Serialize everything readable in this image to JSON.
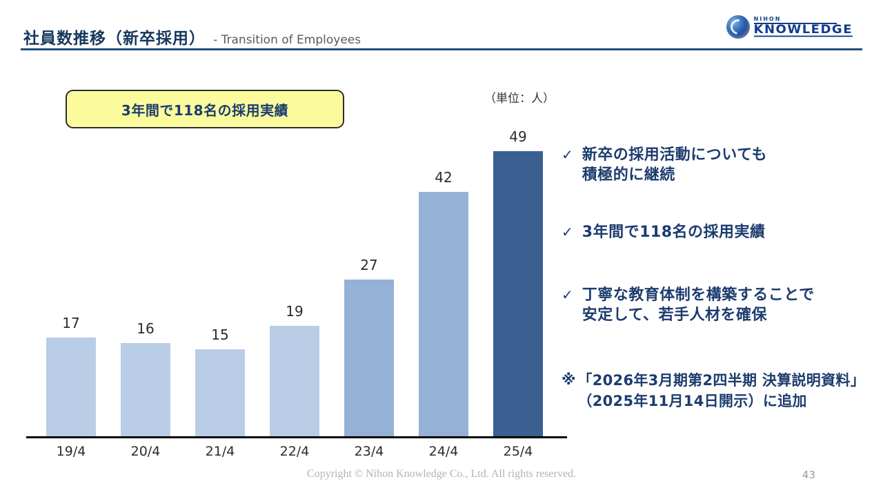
{
  "header": {
    "title_jp": "社員数推移（新卒採用）",
    "title_en": "- Transition of Employees",
    "accent_color": "#1f4e79"
  },
  "logo": {
    "top_text": "NIHON",
    "bottom_text": "KNOWLEDGE",
    "brand_color": "#123a8c"
  },
  "callout": {
    "text": "3年間で118名の採用実績",
    "background_color": "#fbfb9d",
    "text_color": "#1c3c6e"
  },
  "chart_data": {
    "type": "bar",
    "title": "",
    "unit_label": "（単位：人）",
    "categories": [
      "19/4",
      "20/4",
      "21/4",
      "22/4",
      "23/4",
      "24/4",
      "25/4"
    ],
    "values": [
      17,
      16,
      15,
      19,
      27,
      42,
      49
    ],
    "bar_colors": [
      "#b9cde6",
      "#b9cde6",
      "#b9cde6",
      "#b9cde6",
      "#95b1d6",
      "#95b1d6",
      "#3a6091"
    ],
    "xlabel": "",
    "ylabel": "",
    "ylim": [
      0,
      52
    ],
    "grid": false,
    "data_labels": true,
    "legend": false
  },
  "bullets": [
    {
      "check": "✓",
      "line1": "新卒の採用活動についても",
      "line2": "積極的に継続"
    },
    {
      "check": "✓",
      "line1": "3年間で118名の採用実績",
      "line2": ""
    },
    {
      "check": "✓",
      "line1": "丁寧な教育体制を構築することで",
      "line2": "安定して、若手人材を確保"
    }
  ],
  "note": {
    "marker": "※",
    "line1": "「2026年3月期第2四半期 決算説明資料」",
    "line2": "（2025年11月14日開示）に追加"
  },
  "footer": {
    "copyright": "Copyright © Nihon Knowledge Co., Ltd. All rights reserved.",
    "page_number": "43"
  }
}
